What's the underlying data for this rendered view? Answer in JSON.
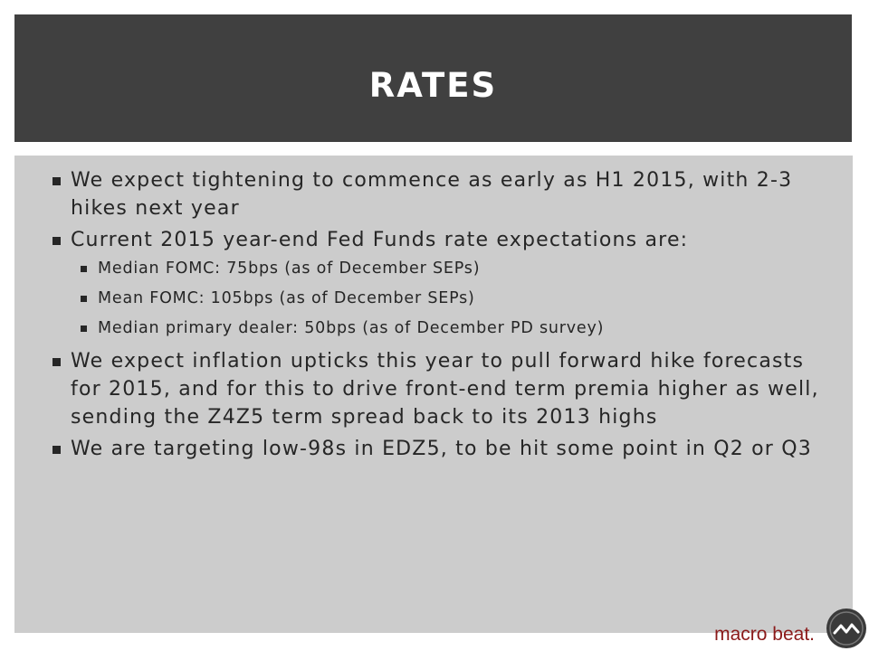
{
  "slide": {
    "title": "RATES",
    "bullets": [
      {
        "level": 1,
        "text": "We expect tightening to commence as early as H1 2015, with 2-3 hikes next year"
      },
      {
        "level": 1,
        "text": "Current 2015 year-end Fed Funds rate expectations are:"
      },
      {
        "level": 2,
        "text": "Median FOMC: 75bps (as of December SEPs)"
      },
      {
        "level": 2,
        "text": "Mean FOMC: 105bps (as of December SEPs)"
      },
      {
        "level": 2,
        "text": "Median primary dealer: 50bps (as of December PD survey)"
      },
      {
        "level": 1,
        "text": "We expect inflation upticks this year to pull forward hike forecasts for 2015, and for this to drive front-end term premia higher as well, sending the Z4Z5 term spread back to its 2013 highs"
      },
      {
        "level": 1,
        "text": "We are targeting low-98s in EDZ5, to be hit some point in Q2 or Q3"
      }
    ]
  },
  "brand": {
    "name": "macro beat.",
    "logo_icon": "macro-beat-logo-icon"
  },
  "colors": {
    "title_bar": "#404040",
    "content_bg": "#cccccc",
    "brand": "#8b1a1a"
  }
}
